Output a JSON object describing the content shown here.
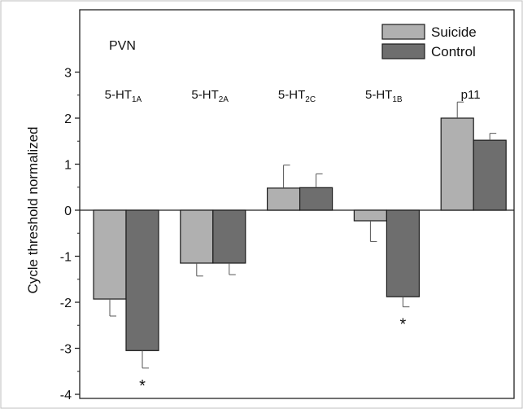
{
  "chart_data": {
    "type": "bar",
    "region_label": "PVN",
    "ylabel": "Cycle threshold normalized",
    "xlabel": "",
    "ylim": [
      -4,
      3.5
    ],
    "yticks": [
      -4,
      -3,
      -2,
      -1,
      0,
      1,
      2,
      3
    ],
    "grid": false,
    "legend_position": "top-right",
    "categories": [
      {
        "base": "5-HT",
        "sub": "1A"
      },
      {
        "base": "5-HT",
        "sub": "2A"
      },
      {
        "base": "5-HT",
        "sub": "2C"
      },
      {
        "base": "5-HT",
        "sub": "1B"
      },
      {
        "base": "p11",
        "sub": ""
      }
    ],
    "series": [
      {
        "name": "Suicide",
        "color": "#b0b0b0",
        "values": [
          -1.93,
          -1.15,
          0.48,
          -0.23,
          2.0
        ],
        "errors": [
          0.37,
          0.28,
          0.5,
          0.45,
          0.35
        ]
      },
      {
        "name": "Control",
        "color": "#6e6e6e",
        "values": [
          -3.05,
          -1.15,
          0.49,
          -1.88,
          1.52
        ],
        "errors": [
          0.38,
          0.25,
          0.3,
          0.22,
          0.15
        ]
      }
    ],
    "significance": [
      {
        "category_index": 0,
        "series_index": 1,
        "mark": "*"
      },
      {
        "category_index": 3,
        "series_index": 1,
        "mark": "*"
      }
    ]
  }
}
